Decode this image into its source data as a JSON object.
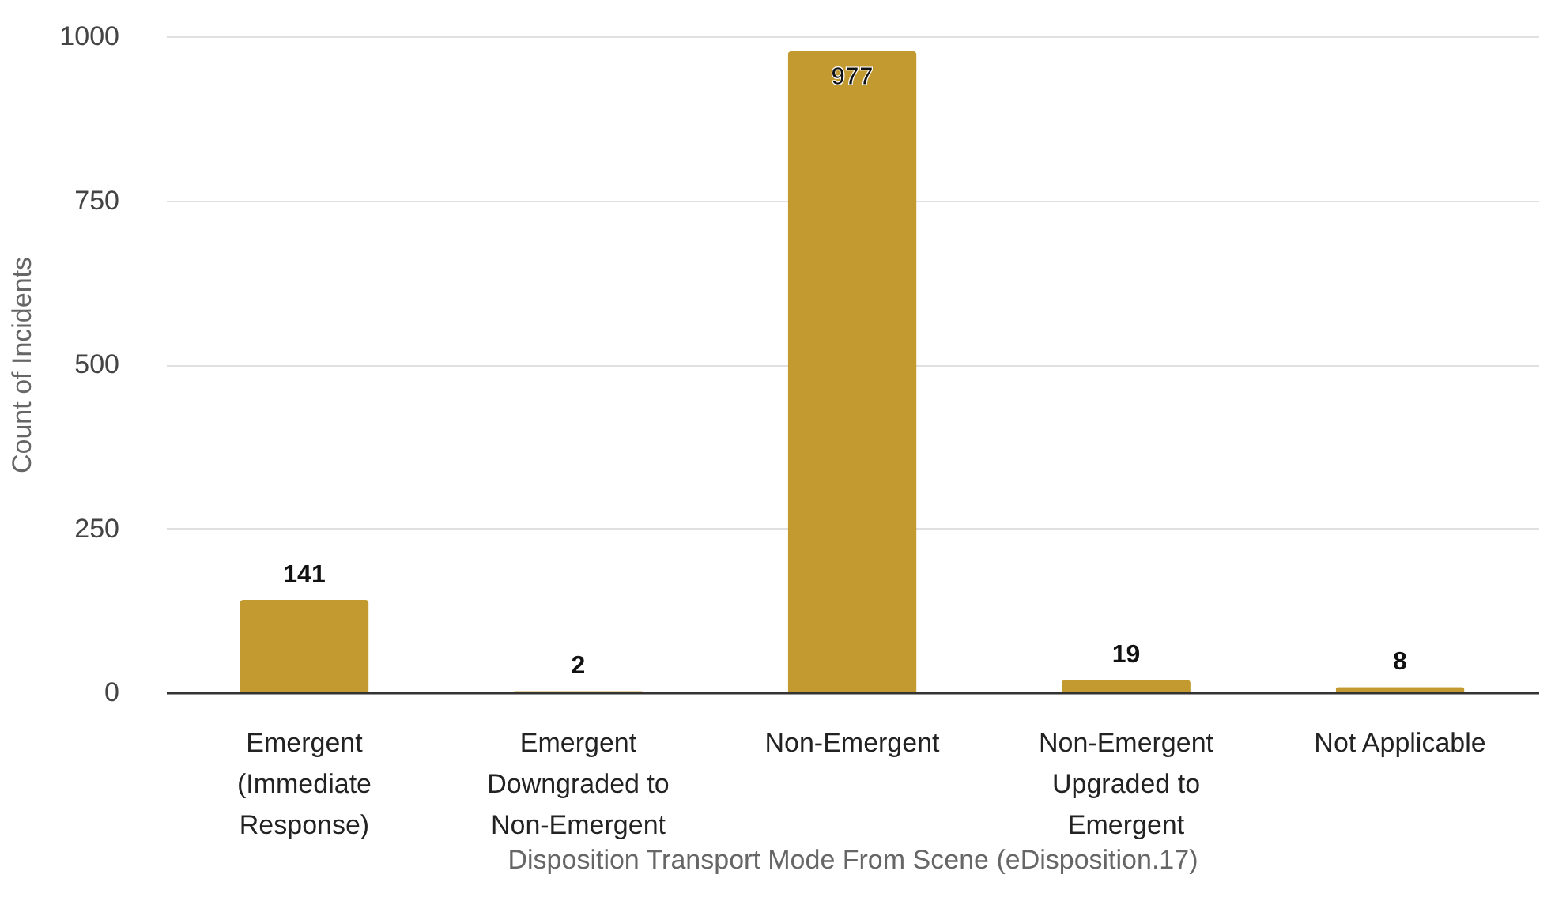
{
  "chart_data": {
    "type": "bar",
    "xlabel": "Disposition Transport Mode From Scene (eDisposition.17)",
    "ylabel": "Count of Incidents",
    "categories": [
      "Emergent (Immediate Response)",
      "Emergent Downgraded to Non-Emergent",
      "Non-Emergent",
      "Non-Emergent Upgraded to Emergent",
      "Not Applicable"
    ],
    "values": [
      141,
      2,
      977,
      19,
      8
    ],
    "color": "#c39a2f",
    "ylim": [
      0,
      1000
    ],
    "yticks": [
      0,
      250,
      500,
      750,
      1000
    ],
    "grid": "y",
    "data_labels": true
  }
}
